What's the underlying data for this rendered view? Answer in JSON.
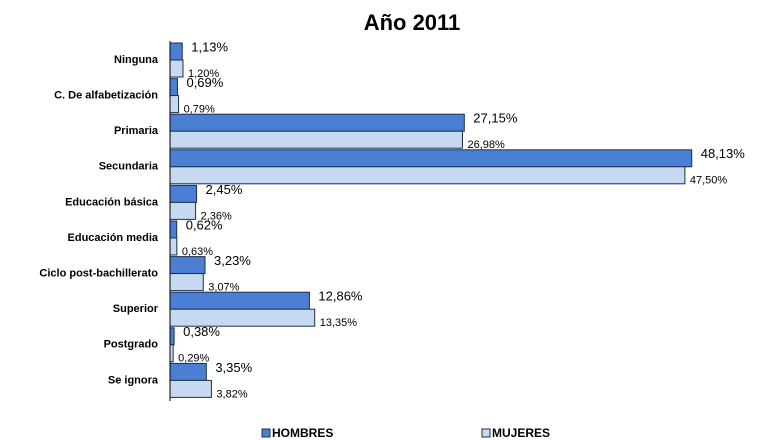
{
  "chart_data": {
    "type": "bar",
    "orientation": "horizontal",
    "title": "Año 2011",
    "categories": [
      "Ninguna",
      "C. De alfabetización",
      "Primaria",
      "Secundaria",
      "Educación básica",
      "Educación media",
      "Ciclo post-bachillerato",
      "Superior",
      "Postgrado",
      "Se ignora"
    ],
    "series": [
      {
        "name": "HOMBRES",
        "color": "#4a7fd4",
        "values": [
          1.13,
          0.69,
          27.15,
          48.13,
          2.45,
          0.62,
          3.23,
          12.86,
          0.38,
          3.35
        ],
        "value_labels": [
          "1,13%",
          "0,69%",
          "27,15%",
          "48,13%",
          "2,45%",
          "0,62%",
          "3,23%",
          "12,86%",
          "0,38%",
          "3,35%"
        ]
      },
      {
        "name": "MUJERES",
        "color": "#c6d9f1",
        "values": [
          1.2,
          0.79,
          26.98,
          47.5,
          2.36,
          0.63,
          3.07,
          13.35,
          0.29,
          3.82
        ],
        "value_labels": [
          "1,20%",
          "0,79%",
          "26,98%",
          "47,50%",
          "2,36%",
          "0,63%",
          "3,07%",
          "13,35%",
          "0,29%",
          "3,82%"
        ]
      }
    ],
    "xlim": [
      0,
      50
    ],
    "legend": "bottom"
  }
}
